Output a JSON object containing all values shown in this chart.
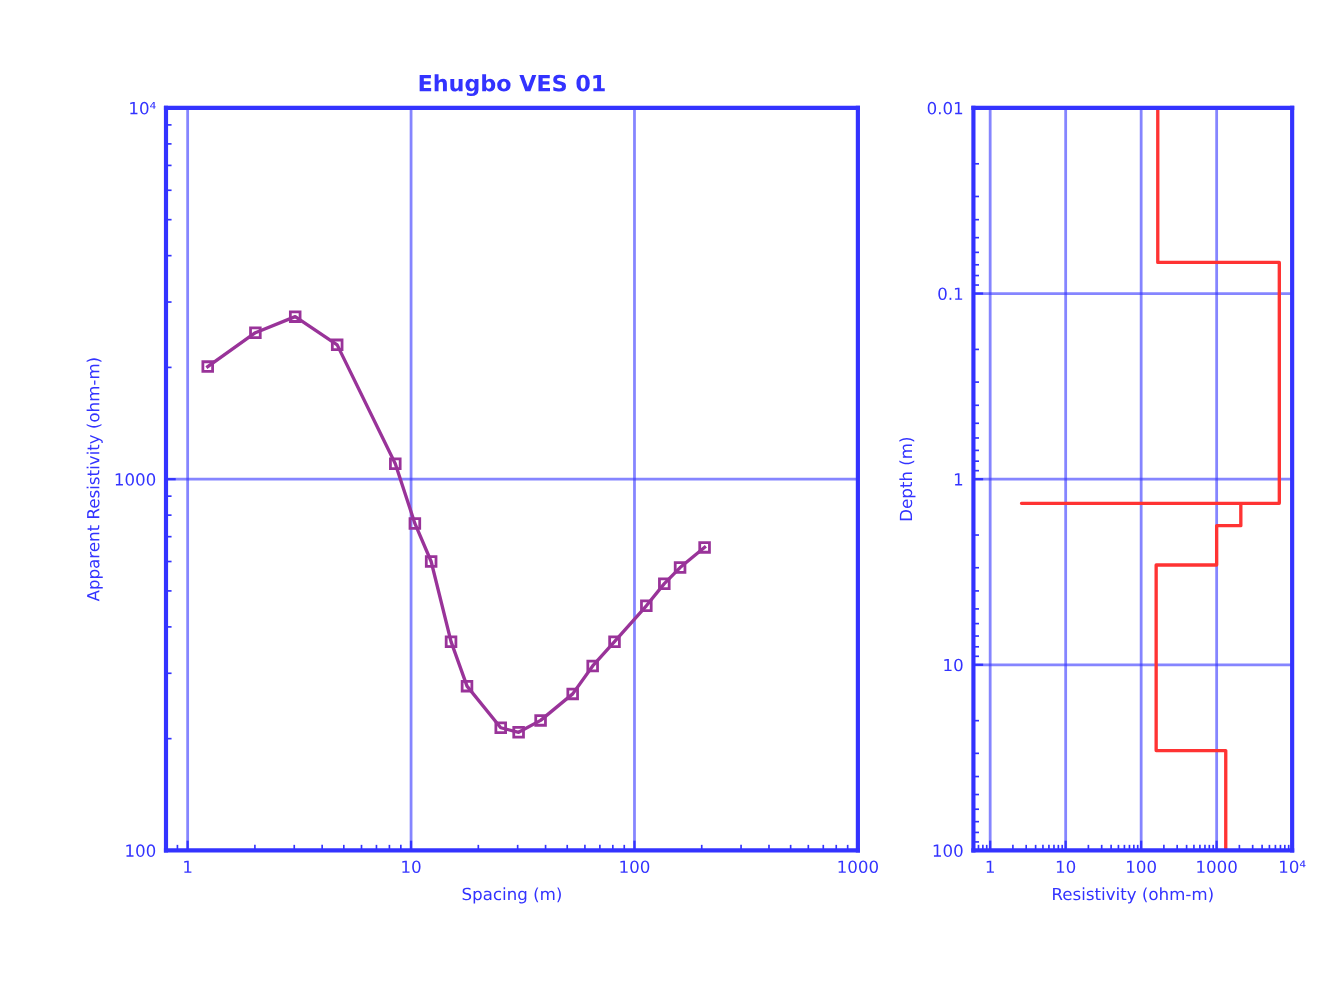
{
  "chart_data": [
    {
      "type": "line",
      "title": "Ehugbo VES 01",
      "xlabel": "Spacing (m)",
      "ylabel": "Apparent Resistivity (ohm-m)",
      "log": "xy",
      "grid": true,
      "marker": "square",
      "line_style": "solid",
      "xlim": [
        0.8,
        1000
      ],
      "xticks": [
        1,
        10,
        100,
        1000
      ],
      "ylim": [
        100,
        10000
      ],
      "yticks": [
        {
          "value": 10000,
          "label": "10⁴"
        },
        1000,
        100
      ],
      "series": [
        {
          "color": "#993399",
          "x": [
            1.23,
            2.01,
            3.03,
            4.67,
            8.5,
            10.4,
            12.3,
            15.1,
            17.8,
            25.2,
            30.3,
            38,
            52.9,
            65,
            81.4,
            113,
            136,
            160,
            206
          ],
          "values": [
            2010,
            2480,
            2740,
            2300,
            1100,
            760,
            600,
            365,
            277,
            214,
            208,
            224,
            264,
            314,
            365,
            456,
            523,
            578,
            655
          ]
        }
      ]
    },
    {
      "type": "line",
      "xlabel": "Resistivity (ohm-m)",
      "ylabel": "Depth (m)",
      "log": "xy",
      "grid": true,
      "line_style": "solid",
      "xlim": [
        0.6,
        10000
      ],
      "xticks": [
        1,
        10,
        100,
        1000,
        {
          "value": 10000,
          "label": "10⁴"
        }
      ],
      "ylim": [
        100,
        0.01
      ],
      "yticks": [
        0.01,
        0.1,
        1,
        10,
        100
      ],
      "series": [
        {
          "color": "#ff3333",
          "x": [
            166,
            166,
            6760,
            6760,
            2.6,
            2090,
            2090,
            1000,
            1000,
            158,
            158,
            1320,
            1320
          ],
          "values": [
            0.01,
            0.068,
            0.068,
            1.35,
            1.35,
            1.35,
            1.78,
            1.78,
            2.9,
            2.9,
            29,
            29,
            100
          ]
        }
      ]
    }
  ]
}
